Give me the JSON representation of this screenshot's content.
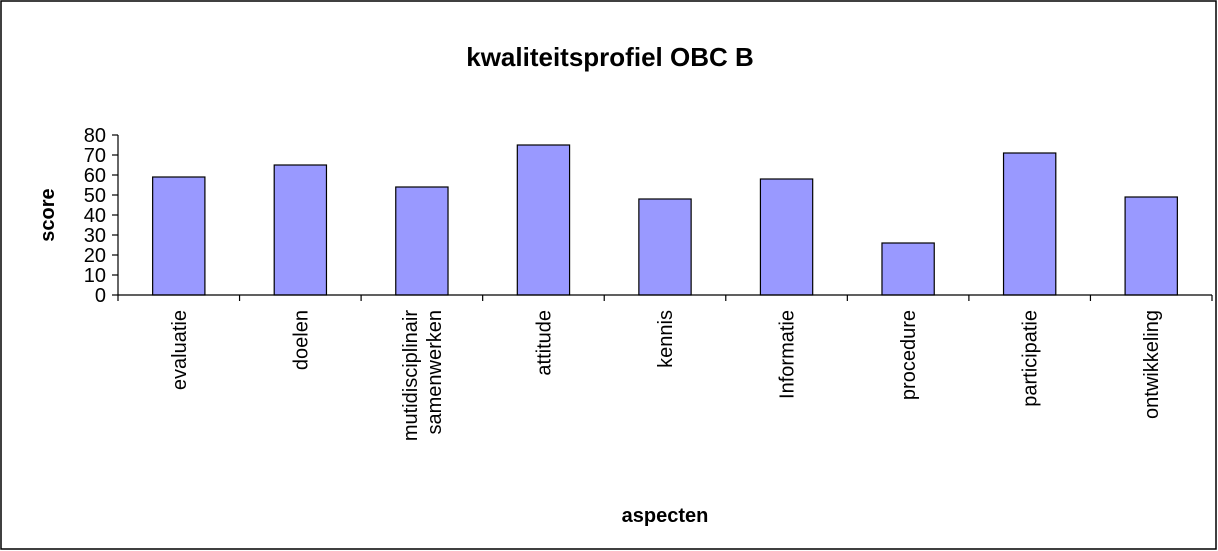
{
  "chart_data": {
    "type": "bar",
    "title": "kwaliteitsprofiel OBC B",
    "x_label": "aspecten",
    "y_label": "score",
    "categories": [
      "evaluatie",
      "doelen",
      "mutidisciplinair samenwerken",
      "attitude",
      "kennis",
      "Informatie",
      "procedure",
      "participatie",
      "ontwikkeling"
    ],
    "values": [
      59,
      65,
      54,
      75,
      48,
      58,
      26,
      71,
      49
    ],
    "color": "#9999ff",
    "ylim": [
      0,
      80
    ],
    "yticks": [
      0,
      10,
      20,
      30,
      40,
      50,
      60,
      70,
      80
    ],
    "grid": false
  }
}
